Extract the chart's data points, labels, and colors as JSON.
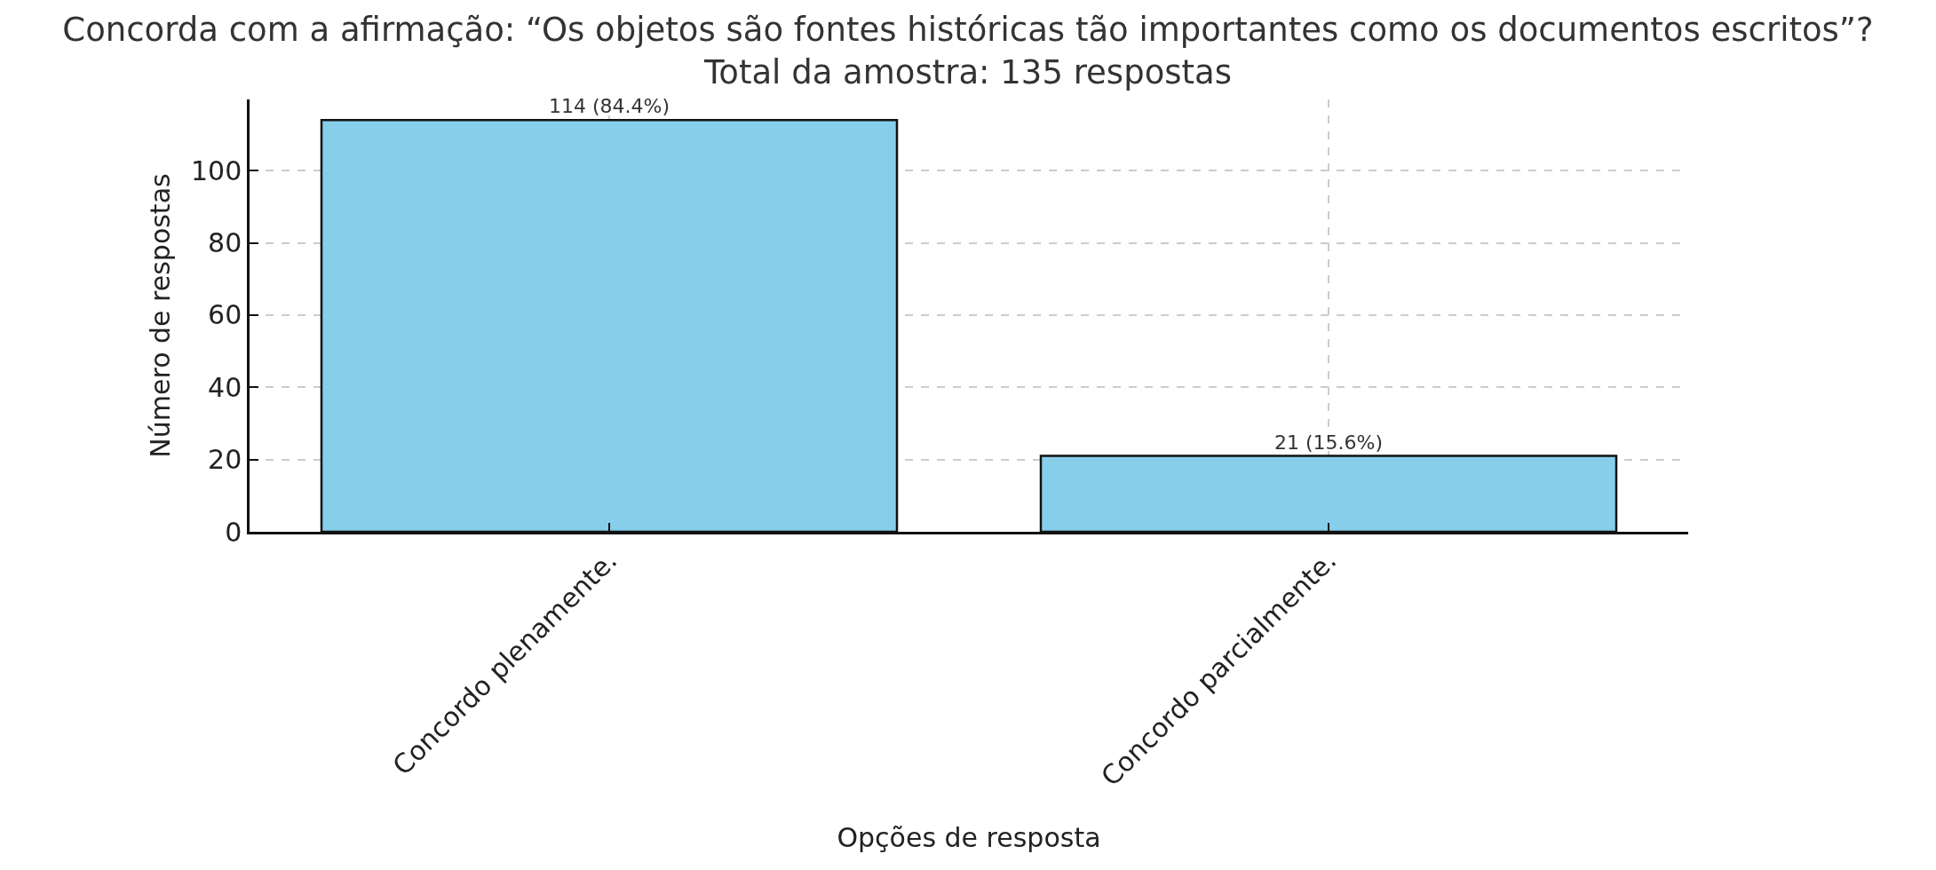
{
  "chart_data": {
    "type": "bar",
    "title": "Concorda com a afirmação: “Os objetos são fontes históricas tão importantes como os documentos escritos”?\nTotal da amostra: 135 respostas",
    "xlabel": "Opções de resposta",
    "ylabel": "Número de respostas",
    "categories": [
      "Concordo plenamente.",
      "Concordo parcialmente."
    ],
    "values": [
      114,
      21
    ],
    "color": "#87ceeb",
    "value_labels": [
      "114 (84.4%)",
      "21 (15.6%)"
    ],
    "ylim": [
      0,
      119.7
    ],
    "yticks": [
      0,
      20,
      40,
      60,
      80,
      100
    ],
    "grid": true
  }
}
